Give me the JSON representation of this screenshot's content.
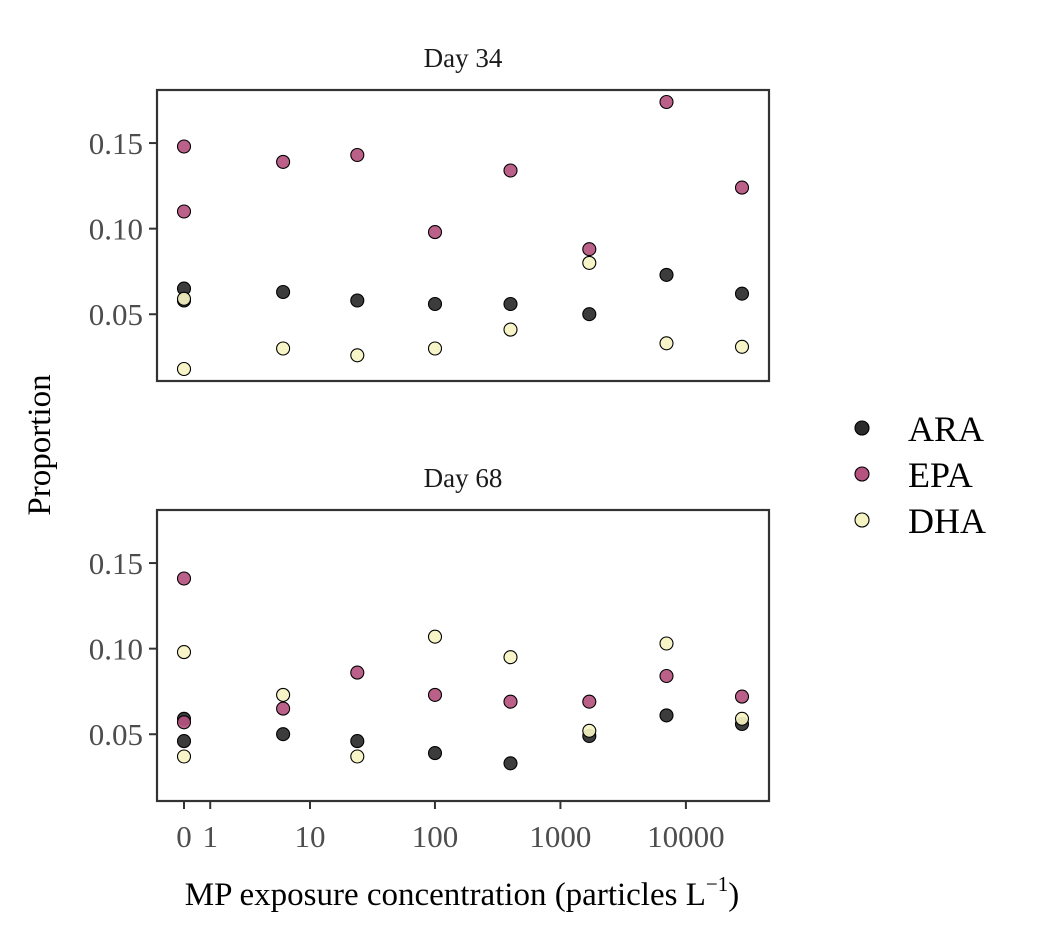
{
  "chart_data": {
    "type": "scatter",
    "xlabel": "MP exposure concentration (particles L",
    "xlabel_sup": "−1",
    "xlabel_end": ")",
    "ylabel": "Proportion",
    "x_scale": "pseudo-log",
    "x_ticks": [
      0,
      1,
      10,
      100,
      1000,
      10000
    ],
    "x_tick_labels": [
      "0",
      "1",
      "10",
      "100",
      "1000",
      "10000"
    ],
    "y_ticks": [
      0.05,
      0.1,
      0.15
    ],
    "y_tick_labels": [
      "0.05",
      "0.10",
      "0.15"
    ],
    "ylim": [
      0.011,
      0.181
    ],
    "legend_position": "right",
    "series": [
      {
        "name": "ARA",
        "color": "#2b2b2b"
      },
      {
        "name": "EPA",
        "color": "#b5527f"
      },
      {
        "name": "DHA",
        "color": "#f6f3c2"
      }
    ],
    "panels": [
      {
        "title": "Day 34",
        "points": {
          "ARA": [
            [
              0,
              0.065
            ],
            [
              0,
              0.058
            ],
            [
              6,
              0.063
            ],
            [
              24,
              0.058
            ],
            [
              100,
              0.056
            ],
            [
              400,
              0.056
            ],
            [
              1700,
              0.05
            ],
            [
              7000,
              0.073
            ],
            [
              28000,
              0.062
            ]
          ],
          "EPA": [
            [
              0,
              0.148
            ],
            [
              0,
              0.11
            ],
            [
              6,
              0.139
            ],
            [
              24,
              0.143
            ],
            [
              100,
              0.098
            ],
            [
              400,
              0.134
            ],
            [
              1700,
              0.088
            ],
            [
              7000,
              0.174
            ],
            [
              28000,
              0.124
            ]
          ],
          "DHA": [
            [
              0,
              0.059
            ],
            [
              0,
              0.018
            ],
            [
              6,
              0.03
            ],
            [
              24,
              0.026
            ],
            [
              100,
              0.03
            ],
            [
              400,
              0.041
            ],
            [
              1700,
              0.08
            ],
            [
              7000,
              0.033
            ],
            [
              28000,
              0.031
            ]
          ]
        }
      },
      {
        "title": "Day 68",
        "points": {
          "ARA": [
            [
              0,
              0.059
            ],
            [
              0,
              0.046
            ],
            [
              6,
              0.05
            ],
            [
              24,
              0.046
            ],
            [
              100,
              0.039
            ],
            [
              400,
              0.033
            ],
            [
              1700,
              0.049
            ],
            [
              7000,
              0.061
            ],
            [
              28000,
              0.056
            ]
          ],
          "EPA": [
            [
              0,
              0.141
            ],
            [
              0,
              0.057
            ],
            [
              6,
              0.065
            ],
            [
              24,
              0.086
            ],
            [
              100,
              0.073
            ],
            [
              400,
              0.069
            ],
            [
              1700,
              0.069
            ],
            [
              7000,
              0.084
            ],
            [
              28000,
              0.072
            ]
          ],
          "DHA": [
            [
              0,
              0.098
            ],
            [
              0,
              0.037
            ],
            [
              6,
              0.073
            ],
            [
              24,
              0.037
            ],
            [
              100,
              0.107
            ],
            [
              400,
              0.095
            ],
            [
              1700,
              0.052
            ],
            [
              7000,
              0.103
            ],
            [
              28000,
              0.059
            ]
          ]
        }
      }
    ]
  }
}
